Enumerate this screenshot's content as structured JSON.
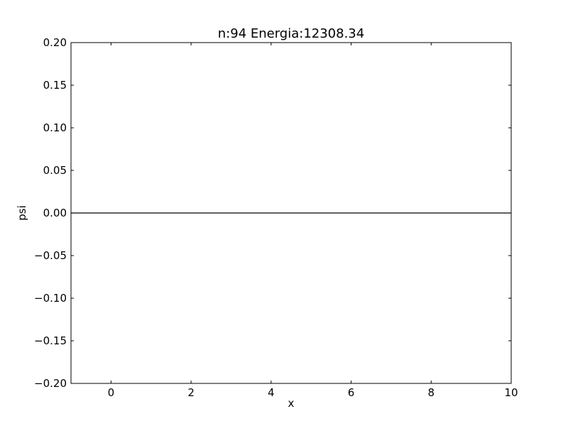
{
  "chart_data": {
    "type": "line",
    "title": "n:94 Energia:12308.34",
    "xlabel": "x",
    "ylabel": "psi",
    "xlim": [
      -1,
      10
    ],
    "ylim": [
      -0.2,
      0.2
    ],
    "xticks": [
      0,
      2,
      4,
      6,
      8,
      10
    ],
    "xtick_labels": [
      "0",
      "2",
      "4",
      "6",
      "8",
      "10"
    ],
    "yticks": [
      0.2,
      0.15,
      0.1,
      0.05,
      0.0,
      -0.05,
      -0.1,
      -0.15,
      -0.2
    ],
    "ytick_labels": [
      "0.20",
      "0.15",
      "0.10",
      "0.05",
      "0.00",
      "−0.05",
      "−0.10",
      "−0.15",
      "−0.20"
    ],
    "grid": false,
    "series": [
      {
        "x": [
          -1,
          10
        ],
        "y": [
          0,
          0
        ],
        "color": "#000000"
      }
    ]
  }
}
